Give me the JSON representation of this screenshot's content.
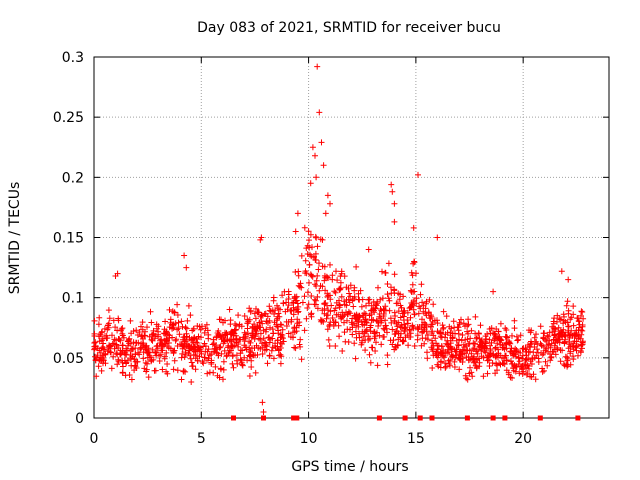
{
  "chart_data": {
    "type": "scatter",
    "title": "Day 083 of 2021, SRMTID for receiver bucu",
    "xlabel": "GPS time / hours",
    "ylabel": "SRMTID / TECUs",
    "xlim": [
      0,
      24
    ],
    "ylim": [
      0,
      0.3
    ],
    "x_ticks": [
      0,
      5,
      10,
      15,
      20
    ],
    "x_tick_labels": [
      "0",
      "5",
      "10",
      "15",
      "20"
    ],
    "y_ticks": [
      0,
      0.05,
      0.1,
      0.15,
      0.2,
      0.25,
      0.3
    ],
    "y_tick_labels": [
      "0",
      "0.05",
      "0.1",
      "0.15",
      "0.2",
      "0.25",
      "0.3"
    ],
    "grid": true,
    "marker": "plus",
    "color": "#ff0000",
    "series": [
      {
        "name": "SRMTID",
        "profile_x": [
          0,
          0.5,
          1.0,
          1.5,
          2.0,
          2.5,
          3.0,
          3.5,
          4.0,
          4.5,
          5.0,
          5.5,
          6.0,
          6.5,
          7.0,
          7.5,
          8.0,
          8.5,
          9.0,
          9.5,
          10.0,
          10.5,
          11.0,
          11.5,
          12.0,
          12.5,
          13.0,
          13.5,
          14.0,
          14.5,
          15.0,
          15.5,
          16.0,
          16.5,
          17.0,
          17.5,
          18.0,
          18.5,
          19.0,
          19.5,
          20.0,
          20.5,
          21.0,
          21.5,
          22.0,
          22.5,
          22.8
        ],
        "profile_mean": [
          0.058,
          0.06,
          0.065,
          0.055,
          0.058,
          0.06,
          0.06,
          0.065,
          0.07,
          0.06,
          0.055,
          0.05,
          0.06,
          0.065,
          0.065,
          0.07,
          0.07,
          0.072,
          0.085,
          0.09,
          0.11,
          0.115,
          0.1,
          0.09,
          0.085,
          0.08,
          0.075,
          0.085,
          0.085,
          0.075,
          0.095,
          0.08,
          0.06,
          0.06,
          0.06,
          0.058,
          0.058,
          0.06,
          0.055,
          0.055,
          0.05,
          0.055,
          0.06,
          0.065,
          0.07,
          0.068,
          0.07
        ],
        "profile_spread": [
          0.02,
          0.02,
          0.025,
          0.02,
          0.02,
          0.02,
          0.02,
          0.02,
          0.03,
          0.02,
          0.02,
          0.02,
          0.02,
          0.02,
          0.025,
          0.025,
          0.025,
          0.025,
          0.03,
          0.035,
          0.045,
          0.045,
          0.035,
          0.03,
          0.03,
          0.025,
          0.025,
          0.035,
          0.03,
          0.025,
          0.035,
          0.025,
          0.02,
          0.02,
          0.02,
          0.02,
          0.02,
          0.02,
          0.02,
          0.02,
          0.02,
          0.02,
          0.02,
          0.02,
          0.025,
          0.02,
          0.02
        ],
        "points_per_hour": 80,
        "peaks": [
          {
            "x": 10.4,
            "y": 0.292
          },
          {
            "x": 10.5,
            "y": 0.254
          },
          {
            "x": 10.6,
            "y": 0.229
          },
          {
            "x": 10.2,
            "y": 0.225
          },
          {
            "x": 10.3,
            "y": 0.218
          },
          {
            "x": 10.7,
            "y": 0.21
          },
          {
            "x": 10.35,
            "y": 0.2
          },
          {
            "x": 10.1,
            "y": 0.195
          },
          {
            "x": 15.1,
            "y": 0.202
          },
          {
            "x": 13.85,
            "y": 0.194
          },
          {
            "x": 13.9,
            "y": 0.188
          },
          {
            "x": 14.0,
            "y": 0.178
          },
          {
            "x": 10.9,
            "y": 0.185
          },
          {
            "x": 11.0,
            "y": 0.178
          },
          {
            "x": 10.8,
            "y": 0.17
          },
          {
            "x": 9.5,
            "y": 0.17
          },
          {
            "x": 9.4,
            "y": 0.155
          },
          {
            "x": 7.8,
            "y": 0.15
          },
          {
            "x": 7.75,
            "y": 0.148
          },
          {
            "x": 14.0,
            "y": 0.163
          },
          {
            "x": 14.9,
            "y": 0.158
          },
          {
            "x": 16.0,
            "y": 0.15
          },
          {
            "x": 12.8,
            "y": 0.14
          },
          {
            "x": 4.2,
            "y": 0.135
          },
          {
            "x": 4.3,
            "y": 0.125
          },
          {
            "x": 1.1,
            "y": 0.12
          },
          {
            "x": 1.0,
            "y": 0.118
          },
          {
            "x": 21.8,
            "y": 0.122
          },
          {
            "x": 22.1,
            "y": 0.115
          },
          {
            "x": 18.6,
            "y": 0.105
          },
          {
            "x": 7.9,
            "y": 0.005
          },
          {
            "x": 7.85,
            "y": 0.013
          }
        ],
        "gap_markers_x": [
          6.5,
          7.9,
          9.3,
          9.45,
          13.3,
          14.5,
          15.2,
          15.75,
          17.4,
          18.6,
          19.15,
          20.8,
          22.55
        ]
      }
    ]
  }
}
